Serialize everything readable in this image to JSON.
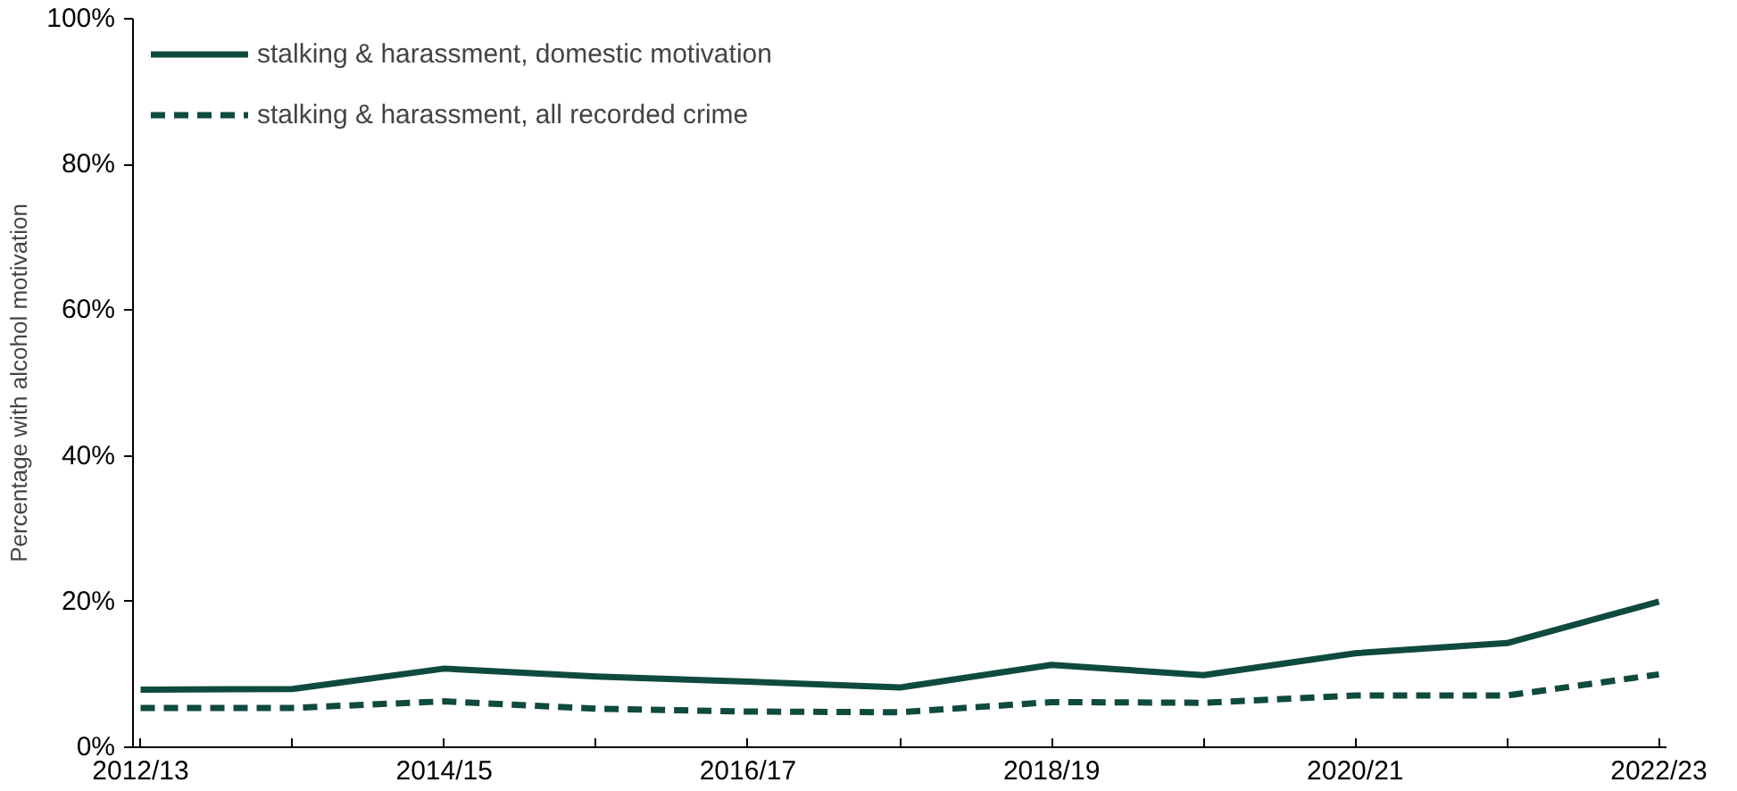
{
  "chart_data": {
    "type": "line",
    "ylabel": "Percentage with alcohol motivation",
    "categories": [
      "2012/13",
      null,
      "2014/15",
      null,
      "2016/17",
      null,
      "2018/19",
      null,
      "2020/21",
      null,
      "2022/23"
    ],
    "series": [
      {
        "name": "stalking & harassment, domestic motivation",
        "color": "#0f4a3e",
        "line_style": "solid",
        "values": [
          7.9,
          8.0,
          10.8,
          9.7,
          9.0,
          8.2,
          11.3,
          9.9,
          12.9,
          14.3,
          20.0
        ]
      },
      {
        "name": "stalking & harassment, all recorded crime",
        "color": "#0f4a3e",
        "line_style": "dashed",
        "values": [
          5.4,
          5.4,
          6.3,
          5.3,
          4.9,
          4.8,
          6.2,
          6.1,
          7.1,
          7.1,
          10.0
        ]
      }
    ],
    "ylim": [
      0,
      100
    ],
    "yticks": [
      {
        "value": 0,
        "label": "0%"
      },
      {
        "value": 20,
        "label": "20%"
      },
      {
        "value": 40,
        "label": "40%"
      },
      {
        "value": 60,
        "label": "60%"
      },
      {
        "value": 80,
        "label": "80%"
      },
      {
        "value": 100,
        "label": "100%"
      }
    ],
    "grid": false,
    "legend": "top left",
    "marker": "none"
  }
}
